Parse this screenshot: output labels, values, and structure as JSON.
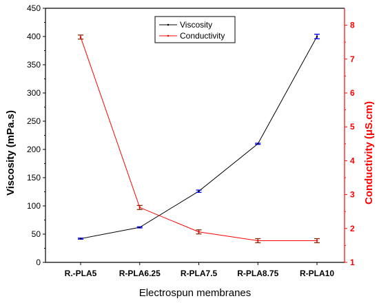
{
  "chart_data": {
    "type": "line",
    "title": "",
    "xlabel": "Electrospun membranes",
    "ylabel_left": "Viscosity (mPa.s)",
    "ylabel_right": "Conductivity (μS.cm)",
    "categories": [
      "R.-PLA5",
      "R-PLA6.25",
      "R-PLA7.5",
      "R-PLA8.75",
      "R-PLA10"
    ],
    "ylim_left": [
      0,
      450
    ],
    "yticks_left": [
      0,
      50,
      100,
      150,
      200,
      250,
      300,
      350,
      400,
      450
    ],
    "ylim_right": [
      1,
      8.5
    ],
    "yticks_right": [
      1,
      2,
      3,
      4,
      5,
      6,
      7,
      8
    ],
    "grid": false,
    "legend_position": "top-center",
    "series": [
      {
        "name": "Viscosity",
        "axis": "left",
        "color": "#000000",
        "error_color": "#0000ff",
        "values": [
          42,
          62,
          126,
          210,
          400
        ],
        "errors": [
          1,
          1,
          2,
          1,
          4
        ]
      },
      {
        "name": "Conductivity",
        "axis": "right",
        "color": "#ff0000",
        "error_color": "#8b2500",
        "values": [
          7.65,
          2.62,
          1.9,
          1.64,
          1.64
        ],
        "errors": [
          0.06,
          0.06,
          0.06,
          0.06,
          0.06
        ]
      }
    ]
  },
  "colors": {
    "left_axis": "#000000",
    "right_axis": "#ff0000"
  }
}
